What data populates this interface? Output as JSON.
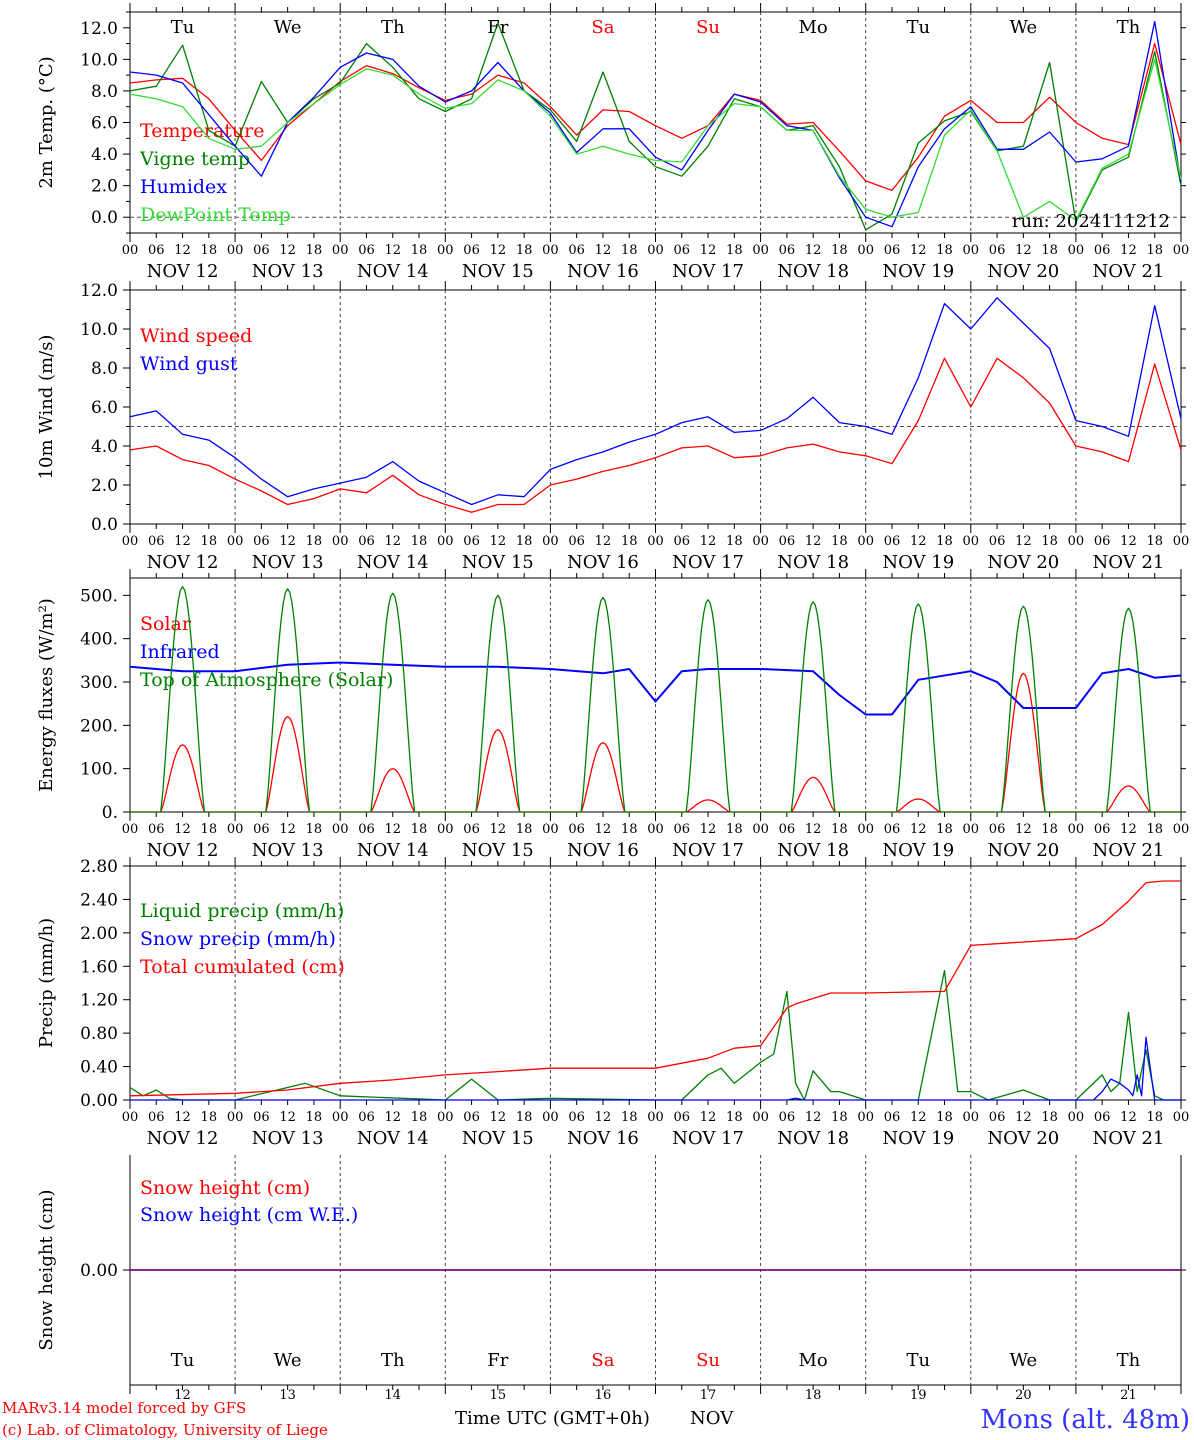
{
  "days": {
    "weekday_top": [
      "Tu",
      "We",
      "Th",
      "Fr",
      "Sa",
      "Su",
      "Mo",
      "Tu",
      "We",
      "Th"
    ],
    "weekday_colors": [
      "#000000",
      "#000000",
      "#000000",
      "#000000",
      "#ff0000",
      "#ff0000",
      "#000000",
      "#000000",
      "#000000",
      "#000000"
    ],
    "date_labels": [
      "NOV 12",
      "NOV 13",
      "NOV 14",
      "NOV 15",
      "NOV 16",
      "NOV 17",
      "NOV 18",
      "NOV 19",
      "NOV 20",
      "NOV 21"
    ],
    "day_numbers": [
      "12",
      "13",
      "14",
      "15",
      "16",
      "17",
      "18",
      "19",
      "20",
      "21"
    ],
    "hour_ticks": [
      "00",
      "06",
      "12",
      "18"
    ],
    "final_hour_tick": "00"
  },
  "footer": {
    "credit_line1": "MARv3.14 model forced by GFS",
    "credit_line2": "(c) Lab. of Climatology, University of Liege",
    "xlabel": "Time UTC (GMT+0h)",
    "month": "NOV",
    "station": "Mons (alt. 48m)"
  },
  "colors": {
    "red": "#ff0000",
    "green": "#008000",
    "blue": "#0000ff",
    "lightgreen": "#33dd33",
    "purple": "#800080"
  },
  "chart_data": [
    {
      "type": "line",
      "ylabel": "2m Temp. (°C)",
      "ylim": [
        -1.0,
        13.0
      ],
      "yticks": [
        "0.0",
        "2.0",
        "4.0",
        "6.0",
        "8.0",
        "10.0",
        "12.0"
      ],
      "ytick_values": [
        0,
        2,
        4,
        6,
        8,
        10,
        12
      ],
      "ref_line": 0,
      "run_label": "run: 2024111212",
      "x_unit": "hours since NOV 12 00 UTC",
      "series": [
        {
          "name": "Temperature",
          "color": "#ff0000",
          "x": [
            0,
            6,
            12,
            18,
            24,
            30,
            36,
            42,
            48,
            54,
            60,
            66,
            72,
            78,
            84,
            90,
            96,
            102,
            108,
            114,
            120,
            126,
            132,
            138,
            144,
            150,
            156,
            162,
            168,
            174,
            180,
            186,
            192,
            198,
            204,
            210,
            216,
            222,
            228,
            234,
            240
          ],
          "values": [
            8.5,
            8.7,
            8.8,
            7.5,
            5.5,
            3.6,
            5.8,
            7.2,
            8.6,
            9.6,
            9.1,
            8.2,
            7.4,
            7.8,
            9.0,
            8.5,
            7.0,
            5.2,
            6.8,
            6.7,
            5.8,
            5.0,
            5.8,
            7.8,
            7.4,
            5.9,
            6.0,
            4.2,
            2.3,
            1.7,
            3.8,
            6.4,
            7.4,
            6.0,
            6.0,
            7.6,
            6.0,
            5.0,
            4.6,
            11.0,
            4.6
          ]
        },
        {
          "name": "Vigne temp",
          "color": "#008000",
          "x": [
            0,
            6,
            12,
            18,
            24,
            30,
            36,
            42,
            48,
            54,
            60,
            66,
            72,
            78,
            84,
            90,
            96,
            102,
            108,
            114,
            120,
            126,
            132,
            138,
            144,
            150,
            156,
            162,
            168,
            174,
            180,
            186,
            192,
            198,
            204,
            210,
            216,
            222,
            228,
            234,
            240
          ],
          "values": [
            8.0,
            8.3,
            10.9,
            5.5,
            4.5,
            8.6,
            6.0,
            7.5,
            8.5,
            11.0,
            9.5,
            7.5,
            6.7,
            7.5,
            12.3,
            8.0,
            6.8,
            4.8,
            9.2,
            4.8,
            3.2,
            2.6,
            4.5,
            7.5,
            7.0,
            5.5,
            5.8,
            3.2,
            -0.8,
            0.2,
            4.7,
            6.1,
            6.7,
            4.2,
            4.5,
            9.8,
            -0.3,
            3.0,
            3.8,
            10.5,
            2.0
          ]
        },
        {
          "name": "Humidex",
          "color": "#0000ff",
          "x": [
            0,
            6,
            12,
            18,
            24,
            30,
            36,
            42,
            48,
            54,
            60,
            66,
            72,
            78,
            84,
            90,
            96,
            102,
            108,
            114,
            120,
            126,
            132,
            138,
            144,
            150,
            156,
            162,
            168,
            174,
            180,
            186,
            192,
            198,
            204,
            210,
            216,
            222,
            228,
            234,
            240
          ],
          "values": [
            9.2,
            9.0,
            8.5,
            6.5,
            4.5,
            2.6,
            6.0,
            7.6,
            9.5,
            10.4,
            10.0,
            8.3,
            7.3,
            8.0,
            9.8,
            8.0,
            6.6,
            4.1,
            5.6,
            5.6,
            3.8,
            3.0,
            5.5,
            7.8,
            7.3,
            5.8,
            5.5,
            2.5,
            0.0,
            -0.6,
            3.2,
            5.6,
            7.0,
            4.3,
            4.3,
            5.4,
            3.5,
            3.7,
            4.5,
            12.4,
            2.2
          ]
        },
        {
          "name": "DewPoint Temp",
          "color": "#33dd33",
          "x": [
            0,
            6,
            12,
            18,
            24,
            30,
            36,
            42,
            48,
            54,
            60,
            66,
            72,
            78,
            84,
            90,
            96,
            102,
            108,
            114,
            120,
            126,
            132,
            138,
            144,
            150,
            156,
            162,
            168,
            174,
            180,
            186,
            192,
            198,
            204,
            210,
            216,
            222,
            228,
            234,
            240
          ],
          "values": [
            7.8,
            7.5,
            7.0,
            5.0,
            4.3,
            4.5,
            6.0,
            7.2,
            8.4,
            9.4,
            9.0,
            7.8,
            6.9,
            7.2,
            8.7,
            8.0,
            6.4,
            4.0,
            4.5,
            4.0,
            3.6,
            3.5,
            5.8,
            7.2,
            7.0,
            5.5,
            5.5,
            2.6,
            0.5,
            0.0,
            0.3,
            5.2,
            6.8,
            4.2,
            0.0,
            1.0,
            -0.2,
            3.1,
            4.0,
            10.0,
            2.4
          ]
        }
      ]
    },
    {
      "type": "line",
      "ylabel": "10m Wind (m/s)",
      "ylim": [
        0.0,
        12.0
      ],
      "yticks": [
        "0.0",
        "2.0",
        "4.0",
        "6.0",
        "8.0",
        "10.0",
        "12.0"
      ],
      "ytick_values": [
        0,
        2,
        4,
        6,
        8,
        10,
        12
      ],
      "ref_line": 5.0,
      "x_unit": "hours since NOV 12 00 UTC",
      "series": [
        {
          "name": "Wind speed",
          "color": "#ff0000",
          "x": [
            0,
            6,
            12,
            18,
            24,
            30,
            36,
            42,
            48,
            54,
            60,
            66,
            72,
            78,
            84,
            90,
            96,
            102,
            108,
            114,
            120,
            126,
            132,
            138,
            144,
            150,
            156,
            162,
            168,
            174,
            180,
            186,
            192,
            198,
            204,
            210,
            216,
            222,
            228,
            234,
            240
          ],
          "values": [
            3.8,
            4.0,
            3.3,
            3.0,
            2.3,
            1.7,
            1.0,
            1.3,
            1.8,
            1.6,
            2.5,
            1.5,
            1.0,
            0.6,
            1.0,
            1.0,
            2.0,
            2.3,
            2.7,
            3.0,
            3.4,
            3.9,
            4.0,
            3.4,
            3.5,
            3.9,
            4.1,
            3.7,
            3.5,
            3.1,
            5.3,
            8.5,
            6.0,
            8.5,
            7.5,
            6.2,
            4.0,
            3.7,
            3.2,
            8.2,
            3.8
          ]
        },
        {
          "name": "Wind gust",
          "color": "#0000ff",
          "x": [
            0,
            6,
            12,
            18,
            24,
            30,
            36,
            42,
            48,
            54,
            60,
            66,
            72,
            78,
            84,
            90,
            96,
            102,
            108,
            114,
            120,
            126,
            132,
            138,
            144,
            150,
            156,
            162,
            168,
            174,
            180,
            186,
            192,
            198,
            204,
            210,
            216,
            222,
            228,
            234,
            240
          ],
          "values": [
            5.5,
            5.8,
            4.6,
            4.3,
            3.4,
            2.3,
            1.4,
            1.8,
            2.1,
            2.4,
            3.2,
            2.2,
            1.6,
            1.0,
            1.5,
            1.4,
            2.8,
            3.3,
            3.7,
            4.2,
            4.6,
            5.2,
            5.5,
            4.7,
            4.8,
            5.4,
            6.5,
            5.2,
            5.0,
            4.6,
            7.5,
            11.3,
            10.0,
            11.6,
            10.3,
            9.0,
            5.3,
            5.0,
            4.5,
            11.2,
            5.4
          ]
        }
      ]
    },
    {
      "type": "line",
      "ylabel": "Energy fluxes (W/m²)",
      "ylim": [
        0,
        540
      ],
      "yticks": [
        "0.",
        "100.",
        "200.",
        "300.",
        "400.",
        "500."
      ],
      "ytick_values": [
        0,
        100,
        200,
        300,
        400,
        500
      ],
      "x_unit": "hours since NOV 12 00 UTC",
      "solar_peaks": [
        155,
        220,
        100,
        190,
        160,
        28,
        80,
        30,
        320,
        60
      ],
      "toa_peaks": [
        520,
        515,
        505,
        500,
        495,
        490,
        485,
        480,
        475,
        470
      ],
      "series": [
        {
          "name": "Solar",
          "color": "#ff0000",
          "note": "daily bell curves, peaks in solar_peaks"
        },
        {
          "name": "Infrared",
          "color": "#0000ff",
          "x": [
            0,
            12,
            24,
            36,
            48,
            60,
            72,
            84,
            96,
            108,
            114,
            120,
            126,
            132,
            144,
            156,
            162,
            168,
            174,
            180,
            192,
            198,
            204,
            216,
            222,
            228,
            234,
            240
          ],
          "values": [
            335,
            325,
            325,
            340,
            345,
            340,
            335,
            335,
            330,
            320,
            330,
            255,
            325,
            330,
            330,
            325,
            270,
            225,
            225,
            305,
            325,
            300,
            240,
            240,
            320,
            330,
            310,
            315
          ]
        },
        {
          "name": "Top of Atmosphere (Solar)",
          "color": "#008000",
          "note": "daily bell curves, peaks in toa_peaks"
        }
      ]
    },
    {
      "type": "line",
      "ylabel": "Precip (mm/h)",
      "ylim": [
        0,
        2.8
      ],
      "yticks": [
        "0.00",
        "0.40",
        "0.80",
        "1.20",
        "1.60",
        "2.00",
        "2.40",
        "2.80"
      ],
      "ytick_values": [
        0,
        0.4,
        0.8,
        1.2,
        1.6,
        2.0,
        2.4,
        2.8
      ],
      "x_unit": "hours since NOV 12 00 UTC",
      "series": [
        {
          "name": "Liquid precip (mm/h)",
          "color": "#008000",
          "x": [
            0,
            3,
            6,
            9,
            12,
            24,
            36,
            40,
            48,
            72,
            78,
            84,
            96,
            120,
            126,
            132,
            135,
            138,
            144,
            147,
            150,
            152,
            154,
            156,
            160,
            162,
            168,
            176,
            180,
            186,
            189,
            192,
            196,
            204,
            210,
            216,
            222,
            224,
            226,
            228,
            230,
            232,
            234,
            236,
            240
          ],
          "values": [
            0.15,
            0.05,
            0.12,
            0.02,
            0.0,
            0.0,
            0.15,
            0.2,
            0.05,
            0.0,
            0.25,
            0.0,
            0.02,
            0.0,
            0.0,
            0.3,
            0.38,
            0.2,
            0.45,
            0.55,
            1.3,
            0.2,
            0.0,
            0.35,
            0.1,
            0.1,
            0.0,
            0.0,
            0.0,
            1.55,
            0.1,
            0.1,
            0.0,
            0.12,
            0.0,
            0.0,
            0.3,
            0.1,
            0.2,
            1.05,
            0.1,
            0.6,
            0.05,
            0.0,
            0.0
          ]
        },
        {
          "name": "Snow precip (mm/h)",
          "color": "#0000ff",
          "x": [
            0,
            150,
            152,
            154,
            220,
            222,
            224,
            226,
            228,
            229,
            230,
            231,
            232,
            234,
            240
          ],
          "values": [
            0,
            0,
            0.02,
            0,
            0,
            0.1,
            0.25,
            0.2,
            0.12,
            0.05,
            0.3,
            0.05,
            0.75,
            0.0,
            0.0
          ]
        },
        {
          "name": "Total cumulated (cm)",
          "color": "#ff0000",
          "x": [
            0,
            24,
            36,
            48,
            60,
            72,
            84,
            96,
            108,
            120,
            132,
            138,
            144,
            150,
            152,
            160,
            168,
            186,
            192,
            216,
            222,
            228,
            232,
            236,
            240
          ],
          "values": [
            0.05,
            0.08,
            0.12,
            0.2,
            0.24,
            0.3,
            0.34,
            0.38,
            0.38,
            0.38,
            0.5,
            0.62,
            0.65,
            1.1,
            1.15,
            1.28,
            1.28,
            1.3,
            1.85,
            1.93,
            2.1,
            2.38,
            2.6,
            2.62,
            2.62
          ]
        }
      ]
    },
    {
      "type": "line",
      "ylabel": "Snow height (cm)",
      "ylim": [
        -1,
        1
      ],
      "yticks": [
        "0.00"
      ],
      "ytick_values": [
        0
      ],
      "x_unit": "hours since NOV 12 00 UTC",
      "series": [
        {
          "name": "Snow height (cm)",
          "color": "#ff0000",
          "x": [
            0,
            240
          ],
          "values": [
            0,
            0
          ]
        },
        {
          "name": "Snow height (cm W.E.)",
          "color": "#0000ff",
          "x": [
            0,
            240
          ],
          "values": [
            0,
            0
          ]
        }
      ]
    }
  ]
}
